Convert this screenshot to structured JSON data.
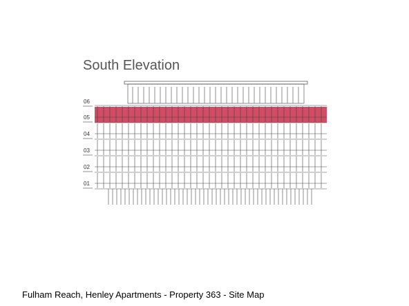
{
  "title": "South Elevation",
  "floors": [
    "06",
    "05",
    "04",
    "03",
    "02",
    "01"
  ],
  "caption": "Fulham Reach, Henley Apartments - Property 363 - Site Map"
}
